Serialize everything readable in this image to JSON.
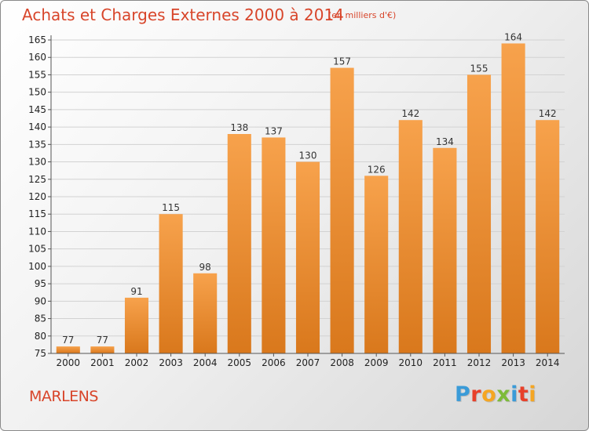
{
  "header": {
    "title": "Achats et Charges Externes 2000 à 2014",
    "subtitle": "(en milliers d'€)"
  },
  "footer": {
    "commune": "MARLENS",
    "logo": [
      "P",
      "r",
      "o",
      "x",
      "i",
      "t",
      "i"
    ],
    "logo_colors": [
      "#3a9bd8",
      "#e8402a",
      "#f5a623",
      "#7dbb3a",
      "#3a9bd8",
      "#e8402a",
      "#f5a623"
    ]
  },
  "colors": {
    "bar_top": "#f7a24c",
    "bar_bottom": "#d9781c",
    "accent_text": "#d8452a"
  },
  "chart_data": {
    "type": "bar",
    "title": "Achats et Charges Externes 2000 à 2014",
    "subtitle": "(en milliers d'€)",
    "categories": [
      "2000",
      "2001",
      "2002",
      "2003",
      "2004",
      "2005",
      "2006",
      "2007",
      "2008",
      "2009",
      "2010",
      "2011",
      "2012",
      "2013",
      "2014"
    ],
    "values": [
      77,
      77,
      91,
      115,
      98,
      138,
      137,
      130,
      157,
      126,
      142,
      134,
      155,
      164,
      142
    ],
    "ylim": [
      75,
      165
    ],
    "yticks": [
      75,
      80,
      85,
      90,
      95,
      100,
      105,
      110,
      115,
      120,
      125,
      130,
      135,
      140,
      145,
      150,
      155,
      160,
      165
    ],
    "grid": true,
    "legend": "none"
  }
}
